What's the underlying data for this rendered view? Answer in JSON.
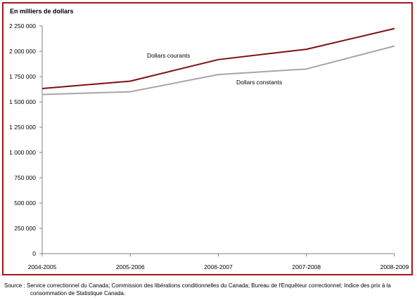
{
  "chart_data": {
    "type": "line",
    "ylabel": "En milliers de dollars",
    "categories": [
      "2004-2005",
      "2005-2006",
      "2006-2007",
      "2007-2008",
      "2008-2009"
    ],
    "ylim": [
      0,
      2250000
    ],
    "yticks": [
      0,
      250000,
      500000,
      750000,
      1000000,
      1250000,
      1500000,
      1750000,
      2000000,
      2250000
    ],
    "ytick_labels": [
      "0",
      "250 000",
      "500 000",
      "750 000",
      "1 000 000",
      "1 250 000",
      "1 500 000",
      "1 750 000",
      "2 000 000",
      "2 250 000"
    ],
    "series": [
      {
        "name": "Dollars courants",
        "color": "#7f0f0f",
        "values": [
          1632000,
          1705000,
          1918000,
          2020000,
          2225000
        ]
      },
      {
        "name": "Dollars constants",
        "color": "#a6a6a6",
        "values": [
          1573000,
          1600000,
          1770000,
          1825000,
          2052000
        ]
      }
    ],
    "grid": false,
    "legend": "inline labels near lines"
  },
  "frame_color": "#a4161a",
  "source": {
    "line1": "Source : Service correctionnel du Canada; Commission des libérations conditionnelles du Canada; Bureau de l'Enquêteur correctionnel; Indice des prix à la",
    "line2": "consommation de Statistique Canada."
  }
}
